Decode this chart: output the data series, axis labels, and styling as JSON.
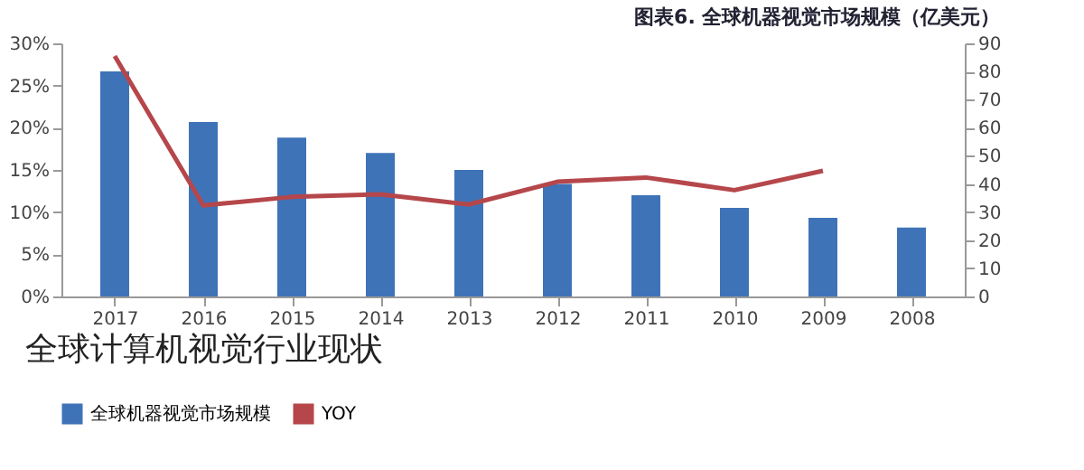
{
  "chart_data": {
    "type": "bar",
    "title": "图表6.  全球机器视觉市场规模（亿美元）",
    "categories": [
      "2017",
      "2016",
      "2015",
      "2014",
      "2013",
      "2012",
      "2011",
      "2010",
      "2009",
      "2008"
    ],
    "series": [
      {
        "name": "全球机器视觉市场规模",
        "axis": "y2",
        "color": "#3f73b8",
        "values": [
          80,
          62,
          56.5,
          51,
          45,
          40,
          36,
          31.5,
          28,
          24.5
        ]
      },
      {
        "name": "YOY",
        "type": "line",
        "axis": "y",
        "color": "#b5474b",
        "values": [
          28.5,
          10.8,
          11.8,
          12.1,
          10.9,
          13.6,
          14.1,
          12.6,
          14.9,
          null
        ]
      }
    ],
    "ylim": [
      0,
      30
    ],
    "yticks": [
      {
        "value": 0,
        "label": "0%"
      },
      {
        "value": 5,
        "label": "5%"
      },
      {
        "value": 10,
        "label": "10%"
      },
      {
        "value": 15,
        "label": "15%"
      },
      {
        "value": 20,
        "label": "20%"
      },
      {
        "value": 25,
        "label": "25%"
      },
      {
        "value": 30,
        "label": "30%"
      }
    ],
    "y2lim": [
      0,
      90
    ],
    "y2ticks": [
      0,
      10,
      20,
      30,
      40,
      50,
      60,
      70,
      80,
      90
    ],
    "grid": false,
    "legend": "bottom",
    "annotations": [
      "全球计算机视觉行业现状"
    ]
  }
}
